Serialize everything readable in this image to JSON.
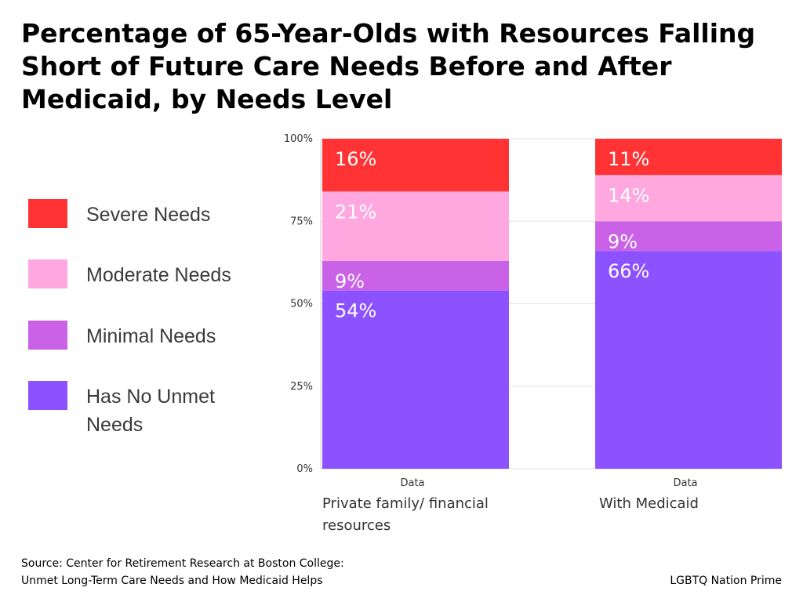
{
  "title": "Percentage of 65-Year-Olds with Resources Falling Short of Future Care Needs Before and After Medicaid, by Needs Level",
  "legend": [
    {
      "label": "Severe Needs",
      "color": "#ff3334"
    },
    {
      "label": "Moderate Needs",
      "color": "#ffa8e0"
    },
    {
      "label": "Minimal Needs",
      "color": "#c962e6"
    },
    {
      "label": "Has No Unmet Needs",
      "color": "#8c52ff"
    }
  ],
  "chart_data": {
    "type": "bar",
    "stacked": true,
    "categories": [
      "Private family/ financial resources",
      "With Medicaid"
    ],
    "category_sublabels": [
      "Data",
      "Data"
    ],
    "series": [
      {
        "name": "Has No Unmet Needs",
        "values": [
          54,
          66
        ],
        "labels": [
          "54%",
          "66%"
        ],
        "color": "#8c52ff"
      },
      {
        "name": "Minimal Needs",
        "values": [
          9,
          9
        ],
        "labels": [
          "9%",
          "9%"
        ],
        "color": "#c962e6"
      },
      {
        "name": "Moderate Needs",
        "values": [
          21,
          14
        ],
        "labels": [
          "21%",
          "14%"
        ],
        "color": "#ffa8e0"
      },
      {
        "name": "Severe Needs",
        "values": [
          16,
          11
        ],
        "labels": [
          "16%",
          "11%"
        ],
        "color": "#ff3334"
      }
    ],
    "yticks": [
      "0%",
      "25%",
      "50%",
      "75%",
      "100%"
    ],
    "ylim": [
      0,
      100
    ],
    "grid": true,
    "legend_position": "left"
  },
  "source": {
    "line1": "Source: Center for Retirement Research at Boston College:",
    "line2": "Unmet Long-Term Care Needs and How Medicaid Helps"
  },
  "brand": "LGBTQ Nation Prime"
}
